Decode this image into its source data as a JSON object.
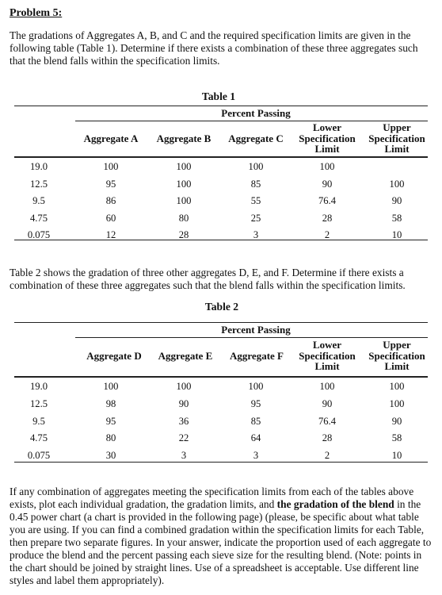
{
  "heading": "Problem 5:",
  "intro": "The gradations of Aggregates A, B, and C and the required specification limits are given in the following table (Table 1). Determine if there exists a combination of these three aggregates such that the blend falls within the specification limits.",
  "table1": {
    "title": "Table 1",
    "super_header": "Percent Passing",
    "headers": [
      "Aggregate A",
      "Aggregate B",
      "Aggregate C",
      "Lower Specification Limit",
      "Upper Specification Limit"
    ],
    "rows": [
      {
        "sieve": "19.0",
        "a": "100",
        "b": "100",
        "c": "100",
        "lower": "100",
        "upper": ""
      },
      {
        "sieve": "12.5",
        "a": "95",
        "b": "100",
        "c": "85",
        "lower": "90",
        "upper": "100"
      },
      {
        "sieve": "9.5",
        "a": "86",
        "b": "100",
        "c": "55",
        "lower": "76.4",
        "upper": "90"
      },
      {
        "sieve": "4.75",
        "a": "60",
        "b": "80",
        "c": "25",
        "lower": "28",
        "upper": "58"
      },
      {
        "sieve": "0.075",
        "a": "12",
        "b": "28",
        "c": "3",
        "lower": "2",
        "upper": "10"
      }
    ]
  },
  "middle": "Table 2 shows the gradation of three other aggregates D, E, and F. Determine if there exists a combination of these three aggregates such that the blend falls within the specification limits.",
  "table2": {
    "title": "Table 2",
    "super_header": "Percent Passing",
    "headers": [
      "Aggregate D",
      "Aggregate E",
      "Aggregate F",
      "Lower Specification Limit",
      "Upper Specification Limit"
    ],
    "rows": [
      {
        "sieve": "19.0",
        "a": "100",
        "b": "100",
        "c": "100",
        "lower": "100",
        "upper": "100"
      },
      {
        "sieve": "12.5",
        "a": "98",
        "b": "90",
        "c": "95",
        "lower": "90",
        "upper": "100"
      },
      {
        "sieve": "9.5",
        "a": "95",
        "b": "36",
        "c": "85",
        "lower": "76.4",
        "upper": "90"
      },
      {
        "sieve": "4.75",
        "a": "80",
        "b": "22",
        "c": "64",
        "lower": "28",
        "upper": "58"
      },
      {
        "sieve": "0.075",
        "a": "30",
        "b": "3",
        "c": "3",
        "lower": "2",
        "upper": "10"
      }
    ]
  },
  "closing_part1": "If any combination of aggregates meeting the specification limits from each of the tables above exists, plot each individual gradation, the gradation limits, and ",
  "closing_bold": "the gradation of the blend",
  "closing_part2": " in the 0.45 power chart (a chart is provided in the following page) (please, be specific about what table you are using. If you can find a combined gradation within the specification limits for each Table, then prepare two separate figures. In your answer, indicate the proportion used of each aggregate to produce the blend and the percent passing each sieve size for the resulting blend. (Note: points in the chart should be joined by straight lines. Use of a spreadsheet is acceptable. Use different line styles and label them appropriately)."
}
